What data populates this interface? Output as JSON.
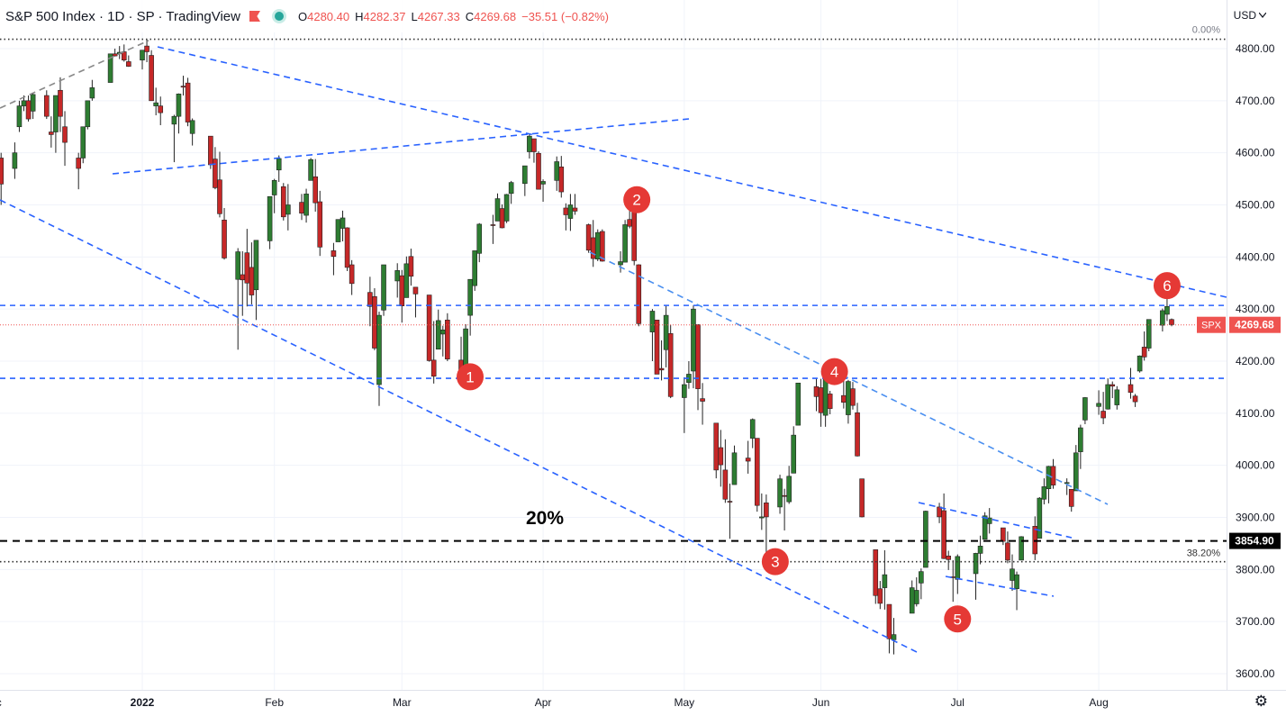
{
  "header": {
    "symbol": "S&P 500 Index · 1D · SP · TradingView",
    "open_label": "O",
    "open": "4280.40",
    "high_label": "H",
    "high": "4282.37",
    "low_label": "L",
    "low": "4267.33",
    "close_label": "C",
    "close": "4269.68",
    "change": "−35.51 (−0.82%)"
  },
  "currency": "USD",
  "currency_icon": "chevron-down-icon",
  "settings_icon": "gear-icon",
  "colors": {
    "up": "#26a69a",
    "down": "#ef5350",
    "candle_up_body": "#2e7d32",
    "candle_down_body": "#c62828",
    "trendline": "#2962ff",
    "grid": "#f0f3fa",
    "axis_text": "#131722"
  },
  "chart_data": {
    "type": "candlestick",
    "title": "S&P 500 Index · 1D · SP · TradingView",
    "ylim": [
      3580,
      4840
    ],
    "y_ticks": [
      "4800.00",
      "4700.00",
      "4600.00",
      "4500.00",
      "4400.00",
      "4300.00",
      "4200.00",
      "4100.00",
      "4000.00",
      "3900.00",
      "3800.00",
      "3700.00",
      "3600.00"
    ],
    "x_ticks": [
      "Dec",
      "2022",
      "Feb",
      "Mar",
      "Apr",
      "May",
      "Jun",
      "Jul",
      "Aug"
    ],
    "grid": true,
    "last_price": {
      "label": "SPX",
      "value": 4269.68
    },
    "horizontal_levels": [
      {
        "label": "0.00%",
        "value": 4818,
        "style": "dotted"
      },
      {
        "label": "38.20%",
        "value": 3815,
        "style": "dotted"
      },
      {
        "label": "3854.90",
        "value": 3854.9,
        "style": "dashed"
      },
      {
        "label": "",
        "value": 4307,
        "style": "dashed-blue"
      },
      {
        "label": "",
        "value": 4167,
        "style": "dashed-blue"
      }
    ],
    "annotations": [
      {
        "text": "20%"
      },
      {
        "text": "1",
        "date": "2022-03-14",
        "price": 4170
      },
      {
        "text": "2",
        "date": "2022-04-20",
        "price": 4510
      },
      {
        "text": "3",
        "date": "2022-05-20",
        "price": 3815
      },
      {
        "text": "4",
        "date": "2022-06-02",
        "price": 4180
      },
      {
        "text": "5",
        "date": "2022-07-01",
        "price": 3705
      },
      {
        "text": "6",
        "date": "2022-08-16",
        "price": 4345
      }
    ],
    "candles": [
      [
        "2021-11-29",
        4630,
        4680,
        4600,
        4660
      ],
      [
        "2021-11-30",
        4660,
        4670,
        4560,
        4570
      ],
      [
        "2021-12-01",
        4600,
        4650,
        4510,
        4515
      ],
      [
        "2021-12-02",
        4530,
        4600,
        4520,
        4580
      ],
      [
        "2021-12-03",
        4590,
        4600,
        4500,
        4540
      ],
      [
        "2021-12-06",
        4570,
        4620,
        4550,
        4600
      ],
      [
        "2021-12-07",
        4650,
        4700,
        4640,
        4690
      ],
      [
        "2021-12-08",
        4690,
        4710,
        4680,
        4700
      ],
      [
        "2021-12-09",
        4700,
        4710,
        4660,
        4665
      ],
      [
        "2021-12-10",
        4680,
        4715,
        4665,
        4712
      ],
      [
        "2021-12-13",
        4710,
        4720,
        4665,
        4670
      ],
      [
        "2021-12-14",
        4640,
        4670,
        4610,
        4635
      ],
      [
        "2021-12-15",
        4640,
        4710,
        4600,
        4710
      ],
      [
        "2021-12-16",
        4720,
        4745,
        4640,
        4670
      ],
      [
        "2021-12-17",
        4650,
        4680,
        4575,
        4620
      ],
      [
        "2021-12-20",
        4590,
        4600,
        4530,
        4570
      ],
      [
        "2021-12-21",
        4590,
        4650,
        4580,
        4650
      ],
      [
        "2021-12-22",
        4650,
        4700,
        4645,
        4700
      ],
      [
        "2021-12-23",
        4705,
        4740,
        4700,
        4725
      ],
      [
        "2021-12-27",
        4735,
        4790,
        4735,
        4790
      ],
      [
        "2021-12-28",
        4790,
        4800,
        4785,
        4786
      ],
      [
        "2021-12-29",
        4790,
        4805,
        4780,
        4793
      ],
      [
        "2021-12-30",
        4794,
        4808,
        4775,
        4778
      ],
      [
        "2021-12-31",
        4775,
        4787,
        4765,
        4766
      ],
      [
        "2022-01-03",
        4778,
        4797,
        4760,
        4797
      ],
      [
        "2022-01-04",
        4805,
        4818,
        4774,
        4794
      ],
      [
        "2022-01-05",
        4787,
        4797,
        4700,
        4700
      ],
      [
        "2022-01-06",
        4690,
        4725,
        4672,
        4696
      ],
      [
        "2022-01-07",
        4690,
        4708,
        4653,
        4677
      ],
      [
        "2022-01-10",
        4655,
        4673,
        4582,
        4670
      ],
      [
        "2022-01-11",
        4670,
        4714,
        4637,
        4713
      ],
      [
        "2022-01-12",
        4728,
        4748,
        4710,
        4726
      ],
      [
        "2022-01-13",
        4734,
        4744,
        4651,
        4659
      ],
      [
        "2022-01-14",
        4637,
        4666,
        4614,
        4662
      ],
      [
        "2022-01-18",
        4632,
        4632,
        4569,
        4577
      ],
      [
        "2022-01-19",
        4588,
        4611,
        4530,
        4533
      ],
      [
        "2022-01-20",
        4548,
        4602,
        4476,
        4483
      ],
      [
        "2022-01-21",
        4471,
        4494,
        4395,
        4398
      ],
      [
        "2022-01-24",
        4357,
        4417,
        4222,
        4410
      ],
      [
        "2022-01-25",
        4366,
        4411,
        4287,
        4356
      ],
      [
        "2022-01-26",
        4408,
        4454,
        4305,
        4350
      ],
      [
        "2022-01-27",
        4380,
        4428,
        4309,
        4327
      ],
      [
        "2022-01-28",
        4337,
        4432,
        4279,
        4432
      ],
      [
        "2022-01-31",
        4431,
        4516,
        4415,
        4516
      ],
      [
        "2022-02-01",
        4519,
        4550,
        4484,
        4547
      ],
      [
        "2022-02-02",
        4567,
        4595,
        4544,
        4589
      ],
      [
        "2022-02-03",
        4535,
        4542,
        4470,
        4477
      ],
      [
        "2022-02-04",
        4482,
        4540,
        4451,
        4500
      ],
      [
        "2022-02-07",
        4505,
        4521,
        4471,
        4484
      ],
      [
        "2022-02-08",
        4480,
        4531,
        4466,
        4521
      ],
      [
        "2022-02-09",
        4547,
        4590,
        4547,
        4587
      ],
      [
        "2022-02-10",
        4554,
        4588,
        4487,
        4504
      ],
      [
        "2022-02-11",
        4506,
        4527,
        4402,
        4419
      ],
      [
        "2022-02-14",
        4412,
        4427,
        4365,
        4401
      ],
      [
        "2022-02-15",
        4429,
        4472,
        4429,
        4472
      ],
      [
        "2022-02-16",
        4455,
        4489,
        4430,
        4475
      ],
      [
        "2022-02-17",
        4456,
        4457,
        4373,
        4380
      ],
      [
        "2022-02-18",
        4385,
        4394,
        4327,
        4349
      ],
      [
        "2022-02-22",
        4332,
        4362,
        4267,
        4305
      ],
      [
        "2022-02-23",
        4324,
        4340,
        4221,
        4225
      ],
      [
        "2022-02-24",
        4155,
        4295,
        4114,
        4288
      ],
      [
        "2022-02-25",
        4298,
        4385,
        4287,
        4385
      ],
      [
        "2022-02-28",
        4354,
        4388,
        4322,
        4374
      ],
      [
        "2022-03-01",
        4364,
        4375,
        4274,
        4306
      ],
      [
        "2022-03-02",
        4322,
        4401,
        4322,
        4387
      ],
      [
        "2022-03-03",
        4401,
        4416,
        4345,
        4363
      ],
      [
        "2022-03-04",
        4342,
        4342,
        4284,
        4329
      ],
      [
        "2022-03-07",
        4327,
        4327,
        4199,
        4201
      ],
      [
        "2022-03-08",
        4202,
        4277,
        4157,
        4171
      ],
      [
        "2022-03-09",
        4223,
        4299,
        4223,
        4278
      ],
      [
        "2022-03-10",
        4252,
        4268,
        4209,
        4260
      ],
      [
        "2022-03-11",
        4279,
        4292,
        4200,
        4204
      ],
      [
        "2022-03-14",
        4202,
        4247,
        4162,
        4173
      ],
      [
        "2022-03-15",
        4188,
        4271,
        4187,
        4262
      ],
      [
        "2022-03-16",
        4288,
        4357,
        4249,
        4357
      ],
      [
        "2022-03-17",
        4345,
        4412,
        4335,
        4412
      ],
      [
        "2022-03-18",
        4407,
        4465,
        4390,
        4463
      ],
      [
        "2022-03-21",
        4462,
        4481,
        4425,
        4461
      ],
      [
        "2022-03-22",
        4469,
        4522,
        4469,
        4512
      ],
      [
        "2022-03-23",
        4493,
        4501,
        4455,
        4456
      ],
      [
        "2022-03-24",
        4469,
        4521,
        4465,
        4520
      ],
      [
        "2022-03-25",
        4522,
        4546,
        4502,
        4543
      ],
      [
        "2022-03-28",
        4541,
        4575,
        4517,
        4575
      ],
      [
        "2022-03-29",
        4602,
        4637,
        4589,
        4632
      ],
      [
        "2022-03-30",
        4627,
        4627,
        4581,
        4602
      ],
      [
        "2022-03-31",
        4599,
        4603,
        4531,
        4530
      ],
      [
        "2022-04-01",
        4540,
        4549,
        4506,
        4545
      ],
      [
        "2022-04-04",
        4547,
        4593,
        4527,
        4583
      ],
      [
        "2022-04-05",
        4573,
        4594,
        4514,
        4525
      ],
      [
        "2022-04-06",
        4494,
        4503,
        4451,
        4481
      ],
      [
        "2022-04-07",
        4474,
        4521,
        4450,
        4500
      ],
      [
        "2022-04-08",
        4494,
        4521,
        4481,
        4488
      ],
      [
        "2022-04-11",
        4462,
        4464,
        4408,
        4413
      ],
      [
        "2022-04-12",
        4437,
        4471,
        4381,
        4397
      ],
      [
        "2022-04-13",
        4396,
        4453,
        4392,
        4447
      ],
      [
        "2022-04-14",
        4449,
        4453,
        4391,
        4392
      ],
      [
        "2022-04-18",
        4385,
        4411,
        4370,
        4391
      ],
      [
        "2022-04-19",
        4390,
        4471,
        4390,
        4462
      ],
      [
        "2022-04-20",
        4472,
        4489,
        4455,
        4459
      ],
      [
        "2022-04-21",
        4489,
        4512,
        4384,
        4393
      ],
      [
        "2022-04-22",
        4385,
        4386,
        4267,
        4272
      ],
      [
        "2022-04-25",
        4256,
        4300,
        4200,
        4296
      ],
      [
        "2022-04-26",
        4279,
        4279,
        4175,
        4175
      ],
      [
        "2022-04-27",
        4186,
        4240,
        4163,
        4183
      ],
      [
        "2022-04-28",
        4222,
        4308,
        4188,
        4288
      ],
      [
        "2022-04-29",
        4253,
        4270,
        4129,
        4132
      ],
      [
        "2022-05-02",
        4130,
        4169,
        4062,
        4155
      ],
      [
        "2022-05-03",
        4159,
        4200,
        4147,
        4175
      ],
      [
        "2022-05-04",
        4181,
        4307,
        4148,
        4300
      ],
      [
        "2022-05-05",
        4270,
        4271,
        4106,
        4147
      ],
      [
        "2022-05-06",
        4128,
        4158,
        4078,
        4123
      ],
      [
        "2022-05-09",
        4081,
        4081,
        3975,
        3991
      ],
      [
        "2022-05-10",
        4034,
        4068,
        3959,
        4001
      ],
      [
        "2022-05-11",
        3991,
        4050,
        3928,
        3935
      ],
      [
        "2022-05-12",
        3931,
        3965,
        3859,
        3930
      ],
      [
        "2022-05-13",
        3963,
        4038,
        3963,
        4024
      ],
      [
        "2022-05-16",
        4014,
        4047,
        3984,
        4008
      ],
      [
        "2022-05-17",
        4052,
        4090,
        4033,
        4088
      ],
      [
        "2022-05-18",
        4052,
        4052,
        3911,
        3923
      ],
      [
        "2022-05-19",
        3899,
        3946,
        3876,
        3901
      ],
      [
        "2022-05-20",
        3928,
        3944,
        3810,
        3901
      ],
      [
        "2022-05-23",
        3920,
        3982,
        3907,
        3974
      ],
      [
        "2022-05-24",
        3942,
        3955,
        3875,
        3941
      ],
      [
        "2022-05-25",
        3930,
        3999,
        3926,
        3979
      ],
      [
        "2022-05-26",
        3985,
        4075,
        3985,
        4058
      ],
      [
        "2022-05-27",
        4077,
        4158,
        4077,
        4158
      ],
      [
        "2022-05-31",
        4151,
        4168,
        4104,
        4132
      ],
      [
        "2022-06-01",
        4149,
        4166,
        4074,
        4101
      ],
      [
        "2022-06-02",
        4096,
        4177,
        4074,
        4177
      ],
      [
        "2022-06-03",
        4137,
        4143,
        4098,
        4109
      ],
      [
        "2022-06-06",
        4134,
        4168,
        4109,
        4121
      ],
      [
        "2022-06-07",
        4097,
        4164,
        4080,
        4161
      ],
      [
        "2022-06-08",
        4147,
        4160,
        4107,
        4115
      ],
      [
        "2022-06-09",
        4101,
        4120,
        4017,
        4018
      ],
      [
        "2022-06-10",
        3974,
        3974,
        3900,
        3901
      ],
      [
        "2022-06-13",
        3838,
        3838,
        3734,
        3750
      ],
      [
        "2022-06-14",
        3763,
        3778,
        3724,
        3735
      ],
      [
        "2022-06-15",
        3765,
        3837,
        3723,
        3790
      ],
      [
        "2022-06-16",
        3733,
        3733,
        3639,
        3667
      ],
      [
        "2022-06-17",
        3665,
        3707,
        3637,
        3675
      ],
      [
        "2022-06-21",
        3716,
        3779,
        3716,
        3765
      ],
      [
        "2022-06-22",
        3734,
        3785,
        3729,
        3760
      ],
      [
        "2022-06-23",
        3774,
        3802,
        3743,
        3796
      ],
      [
        "2022-06-24",
        3804,
        3913,
        3804,
        3912
      ],
      [
        "2022-06-27",
        3920,
        3928,
        3889,
        3901
      ],
      [
        "2022-06-28",
        3913,
        3946,
        3820,
        3821
      ],
      [
        "2022-06-29",
        3826,
        3836,
        3799,
        3819
      ],
      [
        "2022-06-30",
        3786,
        3818,
        3738,
        3785
      ],
      [
        "2022-07-01",
        3781,
        3829,
        3753,
        3825
      ],
      [
        "2022-07-05",
        3792,
        3832,
        3742,
        3831
      ],
      [
        "2022-07-06",
        3831,
        3865,
        3810,
        3845
      ],
      [
        "2022-07-07",
        3858,
        3910,
        3858,
        3903
      ],
      [
        "2022-07-08",
        3888,
        3918,
        3869,
        3899
      ],
      [
        "2022-07-11",
        3880,
        3880,
        3847,
        3854
      ],
      [
        "2022-07-12",
        3851,
        3873,
        3812,
        3818
      ],
      [
        "2022-07-13",
        3779,
        3829,
        3759,
        3801
      ],
      [
        "2022-07-14",
        3763,
        3796,
        3722,
        3790
      ],
      [
        "2022-07-15",
        3818,
        3864,
        3818,
        3863
      ],
      [
        "2022-07-18",
        3883,
        3902,
        3818,
        3830
      ],
      [
        "2022-07-19",
        3860,
        3939,
        3860,
        3937
      ],
      [
        "2022-07-20",
        3935,
        3975,
        3925,
        3959
      ],
      [
        "2022-07-21",
        3955,
        3999,
        3927,
        3998
      ],
      [
        "2022-07-22",
        3998,
        4012,
        3955,
        3962
      ],
      [
        "2022-07-25",
        3965,
        3975,
        3943,
        3967
      ],
      [
        "2022-07-26",
        3954,
        3954,
        3911,
        3921
      ],
      [
        "2022-07-27",
        3951,
        4039,
        3951,
        4024
      ],
      [
        "2022-07-28",
        4026,
        4078,
        3993,
        4072
      ],
      [
        "2022-07-29",
        4087,
        4131,
        4079,
        4130
      ],
      [
        "2022-08-01",
        4113,
        4144,
        4097,
        4119
      ],
      [
        "2022-08-02",
        4104,
        4141,
        4079,
        4091
      ],
      [
        "2022-08-03",
        4108,
        4167,
        4107,
        4155
      ],
      [
        "2022-08-04",
        4155,
        4161,
        4129,
        4152
      ],
      [
        "2022-08-05",
        4116,
        4152,
        4107,
        4145
      ],
      [
        "2022-08-08",
        4155,
        4187,
        4128,
        4140
      ],
      [
        "2022-08-09",
        4133,
        4137,
        4112,
        4122
      ],
      [
        "2022-08-10",
        4181,
        4211,
        4178,
        4210
      ],
      [
        "2022-08-11",
        4227,
        4257,
        4201,
        4208
      ],
      [
        "2022-08-12",
        4225,
        4280,
        4219,
        4280
      ],
      [
        "2022-08-15",
        4269,
        4301,
        4257,
        4297
      ],
      [
        "2022-08-16",
        4290,
        4325,
        4277,
        4305
      ],
      [
        "2022-08-17",
        4280,
        4282,
        4267,
        4270
      ]
    ]
  }
}
